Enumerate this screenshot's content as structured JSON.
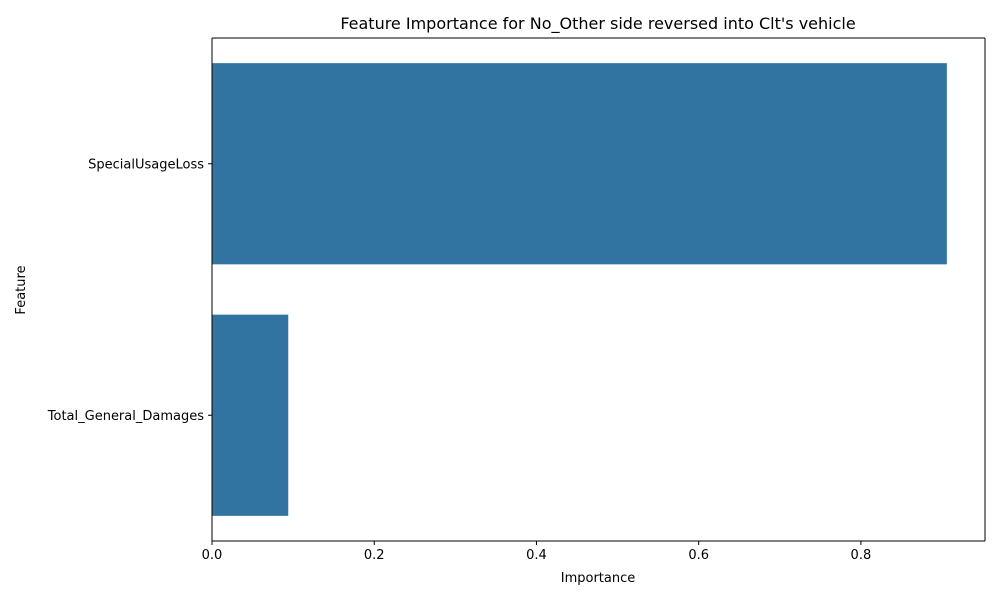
{
  "chart_data": {
    "type": "bar",
    "orientation": "horizontal",
    "title": "Feature Importance for No_Other side reversed into Clt's vehicle",
    "xlabel": "Importance",
    "ylabel": "Feature",
    "categories": [
      "SpecialUsageLoss",
      "Total_General_Damages"
    ],
    "values": [
      0.906,
      0.094
    ],
    "xlim": [
      0,
      0.953
    ],
    "xticks": [
      0.0,
      0.2,
      0.4,
      0.6,
      0.8
    ],
    "xtick_labels": [
      "0.0",
      "0.2",
      "0.4",
      "0.6",
      "0.8"
    ],
    "bar_color": "#3274a1",
    "grid": false,
    "legend": "none"
  }
}
